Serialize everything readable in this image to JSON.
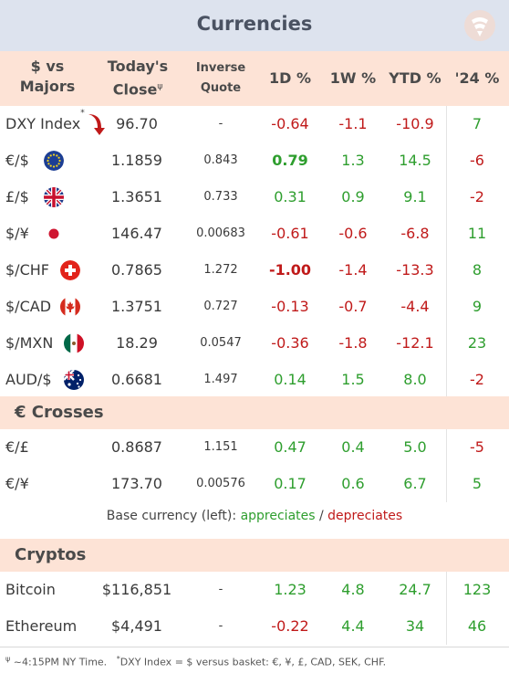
{
  "title": "Currencies",
  "colors": {
    "positive": "#2e9e2e",
    "negative": "#c01a1a",
    "header_bg": "#fde3d6",
    "title_bg": "#dde3ee"
  },
  "headers": {
    "pair_line1": "$ vs",
    "pair_line2": "Majors",
    "close_line1": "Today's",
    "close_line2": "Close",
    "close_mark": "ψ",
    "inverse_line1": "Inverse",
    "inverse_line2": "Quote",
    "d1": "1D %",
    "w1": "1W %",
    "ytd": "YTD %",
    "y24": "'24 %"
  },
  "majors": [
    {
      "name": "DXY Index",
      "mark": "*",
      "icon": "down-arrow-icon",
      "close": "96.70",
      "inverse": "-",
      "d1": "-0.64",
      "w1": "-1.1",
      "ytd": "-10.9",
      "y24": "7"
    },
    {
      "name": "€/$",
      "icon": "eu-flag-icon",
      "close": "1.1859",
      "inverse": "0.843",
      "d1": "0.79",
      "w1": "1.3",
      "ytd": "14.5",
      "y24": "-6"
    },
    {
      "name": "£/$",
      "icon": "uk-flag-icon",
      "close": "1.3651",
      "inverse": "0.733",
      "d1": "0.31",
      "w1": "0.9",
      "ytd": "9.1",
      "y24": "-2"
    },
    {
      "name": "$/¥",
      "icon": "japan-flag-icon",
      "close": "146.47",
      "inverse": "0.00683",
      "d1": "-0.61",
      "w1": "-0.6",
      "ytd": "-6.8",
      "y24": "11"
    },
    {
      "name": "$/CHF",
      "icon": "swiss-flag-icon",
      "close": "0.7865",
      "inverse": "1.272",
      "d1": "-1.00",
      "w1": "-1.4",
      "ytd": "-13.3",
      "y24": "8"
    },
    {
      "name": "$/CAD",
      "icon": "canada-flag-icon",
      "close": "1.3751",
      "inverse": "0.727",
      "d1": "-0.13",
      "w1": "-0.7",
      "ytd": "-4.4",
      "y24": "9"
    },
    {
      "name": "$/MXN",
      "icon": "mexico-flag-icon",
      "close": "18.29",
      "inverse": "0.0547",
      "d1": "-0.36",
      "w1": "-1.8",
      "ytd": "-12.1",
      "y24": "23"
    },
    {
      "name": "AUD/$",
      "icon": "australia-flag-icon",
      "close": "0.6681",
      "inverse": "1.497",
      "d1": "0.14",
      "w1": "1.5",
      "ytd": "8.0",
      "y24": "-2"
    }
  ],
  "crosses_title": "€ Crosses",
  "crosses": [
    {
      "name": "€/£",
      "close": "0.8687",
      "inverse": "1.151",
      "d1": "0.47",
      "w1": "0.4",
      "ytd": "5.0",
      "y24": "-5"
    },
    {
      "name": "€/¥",
      "close": "173.70",
      "inverse": "0.00576",
      "d1": "0.17",
      "w1": "0.6",
      "ytd": "6.7",
      "y24": "5"
    }
  ],
  "legend": {
    "prefix": "Base currency (left):",
    "appreciates": "appreciates",
    "sep": "/",
    "depreciates": "depreciates"
  },
  "cryptos_title": "Cryptos",
  "cryptos": [
    {
      "name": "Bitcoin",
      "close": "$116,851",
      "inverse": "-",
      "d1": "1.23",
      "w1": "4.8",
      "ytd": "24.7",
      "y24": "123"
    },
    {
      "name": "Ethereum",
      "close": "$4,491",
      "inverse": "-",
      "d1": "-0.22",
      "w1": "4.4",
      "ytd": "34",
      "y24": "46"
    }
  ],
  "footnote": {
    "mark1": "ψ",
    "text1": "~4:15PM NY Time.",
    "mark2": "*",
    "text2": "DXY Index = $ versus basket: €, ¥, £, CAD, SEK, CHF."
  }
}
